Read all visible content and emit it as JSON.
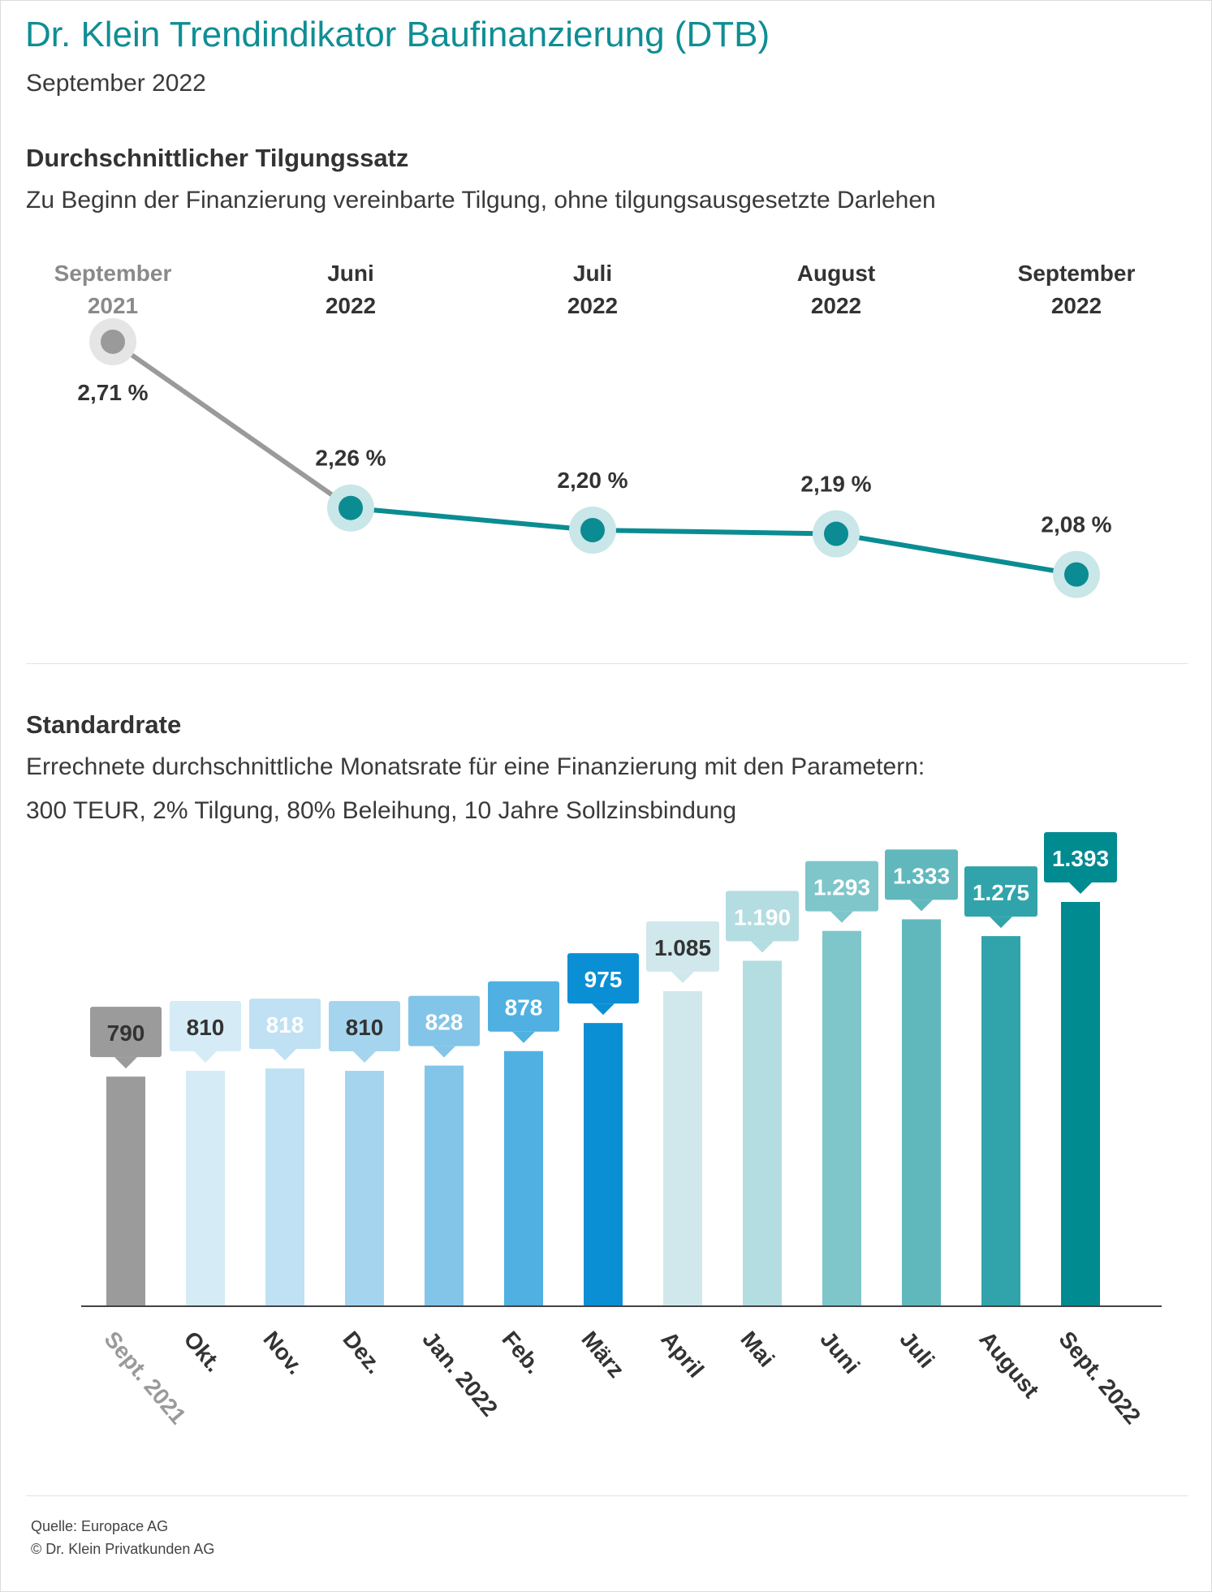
{
  "header": {
    "title": "Dr. Klein Trendindikator Baufinanzierung (DTB)",
    "subtitle": "September 2022"
  },
  "section1": {
    "title": "Durchschnittlicher Tilgungssatz",
    "description": "Zu Beginn der Finanzierung vereinbarte Tilgung, ohne tilgungsausgesetzte Darlehen"
  },
  "section2": {
    "title": "Standardrate",
    "description_line1": "Errechnete durchschnittliche Monatsrate für eine Finanzierung mit den Parametern:",
    "description_line2": "300 TEUR, 2% Tilgung, 80% Beleihung, 10 Jahre Sollzinsbindung"
  },
  "footer": {
    "source": "Quelle: Europace AG",
    "copyright": "© Dr. Klein Privatkunden AG"
  },
  "chart_data": [
    {
      "type": "line",
      "title": "Durchschnittlicher Tilgungssatz",
      "unit": "%",
      "categories": [
        [
          "September",
          "2021"
        ],
        [
          "Juni",
          "2022"
        ],
        [
          "Juli",
          "2022"
        ],
        [
          "August",
          "2022"
        ],
        [
          "September",
          "2022"
        ]
      ],
      "values": [
        2.71,
        2.26,
        2.2,
        2.19,
        2.08
      ],
      "value_labels": [
        "2,71 %",
        "2,26 %",
        "2,20 %",
        "2,19 %",
        "2,08 %"
      ],
      "colors": {
        "reference": "#9a9a9a",
        "reference_halo": "#e5e5e5",
        "reference_label": "#8a8a8a",
        "series": "#0a8c92",
        "series_halo": "#c9e6e8"
      }
    },
    {
      "type": "bar",
      "title": "Standardrate",
      "categories": [
        "Sept. 2021",
        "Okt.",
        "Nov.",
        "Dez.",
        "Jan. 2022",
        "Feb.",
        "März",
        "April",
        "Mai",
        "Juni",
        "Juli",
        "August",
        "Sept. 2022"
      ],
      "values": [
        790,
        810,
        818,
        810,
        828,
        878,
        975,
        1085,
        1190,
        1293,
        1333,
        1275,
        1393
      ],
      "value_labels": [
        "790",
        "810",
        "818",
        "810",
        "828",
        "878",
        "975",
        "1.085",
        "1.190",
        "1.293",
        "1.333",
        "1.275",
        "1.393"
      ],
      "bar_colors": [
        "#9b9b9b",
        "#d5ecf7",
        "#bfe1f3",
        "#a5d5ee",
        "#83c5e8",
        "#4fb0e1",
        "#0a8fd4",
        "#d0e8ec",
        "#b3dde1",
        "#7fc6cb",
        "#60b8bd",
        "#30a4aa",
        "#008b91"
      ],
      "label_text_colors": [
        "#333333",
        "#333333",
        "#ffffff",
        "#333333",
        "#ffffff",
        "#ffffff",
        "#ffffff",
        "#333333",
        "#ffffff",
        "#ffffff",
        "#ffffff",
        "#ffffff",
        "#ffffff"
      ],
      "axis_label_colors": [
        "#9a9a9a",
        "#333333",
        "#333333",
        "#333333",
        "#333333",
        "#333333",
        "#333333",
        "#333333",
        "#333333",
        "#333333",
        "#333333",
        "#333333",
        "#333333"
      ]
    }
  ]
}
